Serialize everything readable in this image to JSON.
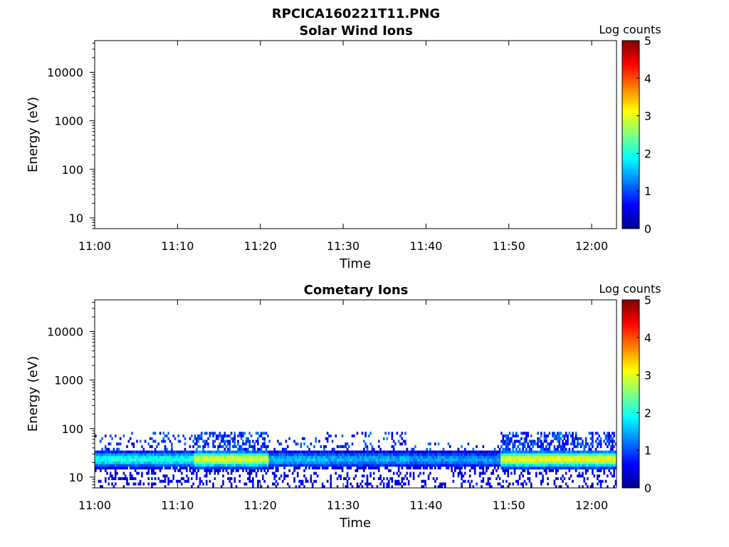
{
  "figure_title": "RPCICA160221T11.PNG",
  "chart_data": [
    {
      "type": "heatmap",
      "title": "Solar Wind Ions",
      "xlabel": "Time",
      "ylabel": "Energy (eV)",
      "x_ticks": [
        "11:00",
        "11:10",
        "11:20",
        "11:30",
        "11:40",
        "11:50",
        "12:00"
      ],
      "y_ticks": [
        "10",
        "100",
        "1000",
        "10000"
      ],
      "y_scale": "log",
      "xlim": [
        "11:00",
        "12:03"
      ],
      "ylim": [
        6,
        45000
      ],
      "colorbar": {
        "label": "Log counts",
        "ticks": [
          "0",
          "1",
          "2",
          "3",
          "4",
          "5"
        ],
        "range": [
          0,
          5
        ],
        "colormap": "jet"
      },
      "data": []
    },
    {
      "type": "heatmap",
      "title": "Cometary Ions",
      "xlabel": "Time",
      "ylabel": "Energy (eV)",
      "x_ticks": [
        "11:00",
        "11:10",
        "11:20",
        "11:30",
        "11:40",
        "11:50",
        "12:00"
      ],
      "y_ticks": [
        "10",
        "100",
        "1000",
        "10000"
      ],
      "y_scale": "log",
      "xlim": [
        "11:00",
        "12:03"
      ],
      "ylim": [
        6,
        45000
      ],
      "colorbar": {
        "label": "Log counts",
        "ticks": [
          "0",
          "1",
          "2",
          "3",
          "4",
          "5"
        ],
        "range": [
          0,
          5
        ],
        "colormap": "jet"
      },
      "segments": [
        {
          "start": "11:00",
          "end": "11:12",
          "peak_log_counts": 2.0,
          "upper_energy_eV": 80
        },
        {
          "start": "11:12",
          "end": "11:21",
          "peak_log_counts": 3.0,
          "upper_energy_eV": 80
        },
        {
          "start": "11:21",
          "end": "11:28",
          "peak_log_counts": 1.6,
          "upper_energy_eV": 60
        },
        {
          "start": "11:28",
          "end": "11:38",
          "peak_log_counts": 1.5,
          "upper_energy_eV": 80
        },
        {
          "start": "11:38",
          "end": "11:49",
          "peak_log_counts": 1.4,
          "upper_energy_eV": 50
        },
        {
          "start": "11:49",
          "end": "12:03",
          "peak_log_counts": 3.1,
          "upper_energy_eV": 80
        }
      ],
      "band_center_energy_eV": 22
    }
  ]
}
